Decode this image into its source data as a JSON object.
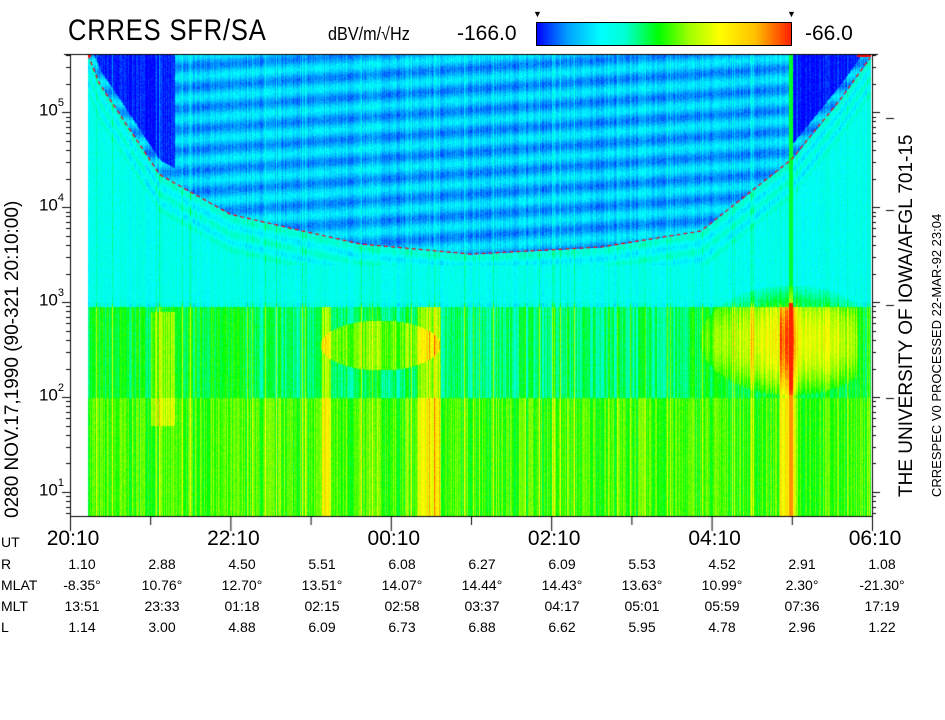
{
  "header": {
    "title": "CRRES SFR/SA",
    "units": "dBV/m/√Hz",
    "colorbar_min": "-166.0",
    "colorbar_max": "-66.0",
    "colorbar_colors": [
      "#0000ff",
      "#00ffff",
      "#00ff00",
      "#ffff00",
      "#ff2000"
    ]
  },
  "left_label": "0280   NOV.17,1990   (90-321 20:10:00)",
  "right_label_1": "THE UNIVERSITY OF IOWA/AFGL 701-15",
  "right_label_2": "CRRESPEC V0    PROCESSED 22-MAR-92   23:04",
  "chart_data": {
    "type": "heatmap",
    "title": "CRRES SFR/SA",
    "colorbar": {
      "label": "dBV/m/√Hz",
      "min": -166.0,
      "max": -66.0
    },
    "x_range": [
      "20:10",
      "06:10"
    ],
    "x_ticks": [
      "20:10",
      "22:10",
      "00:10",
      "02:10",
      "04:10",
      "06:10"
    ],
    "y_scale": "log",
    "y_range": [
      5.6,
      400000
    ],
    "y_ticks": [
      {
        "base": "10",
        "exp": "1"
      },
      {
        "base": "10",
        "exp": "2"
      },
      {
        "base": "10",
        "exp": "3"
      },
      {
        "base": "10",
        "exp": "4"
      },
      {
        "base": "10",
        "exp": "5"
      }
    ],
    "overlay_curve": {
      "color": "#ff0000",
      "points": [
        [
          "20:32",
          200000
        ],
        [
          "21:17",
          22000
        ],
        [
          "22:10",
          8400
        ],
        [
          "23:02",
          5700
        ],
        [
          "23:47",
          4100
        ],
        [
          "01:10",
          3200
        ],
        [
          "02:47",
          3800
        ],
        [
          "04:02",
          5600
        ],
        [
          "05:10",
          32000
        ],
        [
          "05:47",
          140000
        ],
        [
          "06:10",
          400000
        ]
      ]
    }
  },
  "ephemeris": {
    "ut_label": "UT",
    "rows": [
      {
        "label": "R",
        "values": [
          "1.10",
          "2.88",
          "4.50",
          "5.51",
          "6.08",
          "6.27",
          "6.09",
          "5.53",
          "4.52",
          "2.91",
          "1.08"
        ]
      },
      {
        "label": "MLAT",
        "values": [
          "-8.35°",
          "10.76°",
          "12.70°",
          "13.51°",
          "14.07°",
          "14.44°",
          "14.43°",
          "13.63°",
          "10.99°",
          "2.30°",
          "-21.30°"
        ]
      },
      {
        "label": "MLT",
        "values": [
          "13:51",
          "23:33",
          "01:18",
          "02:15",
          "02:58",
          "03:37",
          "04:17",
          "05:01",
          "05:59",
          "07:36",
          "17:19"
        ]
      },
      {
        "label": "L",
        "values": [
          "1.14",
          "3.00",
          "4.88",
          "6.09",
          "6.73",
          "6.88",
          "6.62",
          "5.95",
          "4.78",
          "2.96",
          "1.22"
        ]
      }
    ]
  }
}
